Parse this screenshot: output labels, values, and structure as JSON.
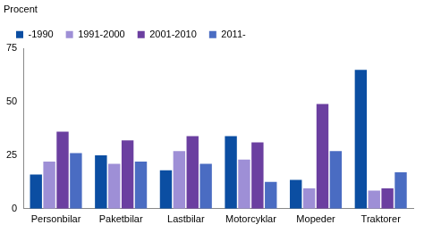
{
  "chart_data": {
    "type": "bar",
    "ylabel": "Procent",
    "categories": [
      "Personbilar",
      "Paketbilar",
      "Lastbilar",
      "Motorcyklar",
      "Mopeder",
      "Traktorer"
    ],
    "series": [
      {
        "name": "-1990",
        "color": "#0b4ea2",
        "values": [
          16,
          25,
          18,
          34,
          13.5,
          65
        ]
      },
      {
        "name": "1991-2000",
        "color": "#9e8fd6",
        "values": [
          22,
          21,
          27,
          23,
          9.5,
          8.5
        ]
      },
      {
        "name": "2001-2010",
        "color": "#6b3fa0",
        "values": [
          36,
          32,
          34,
          31,
          49,
          9.5
        ]
      },
      {
        "name": "2011-",
        "color": "#4a6cc2",
        "values": [
          26,
          22,
          21,
          12.5,
          27,
          17
        ]
      }
    ],
    "ylim": [
      0,
      75
    ],
    "yticks": [
      0,
      25,
      50,
      75
    ],
    "grid": false,
    "legend": "top-left"
  }
}
